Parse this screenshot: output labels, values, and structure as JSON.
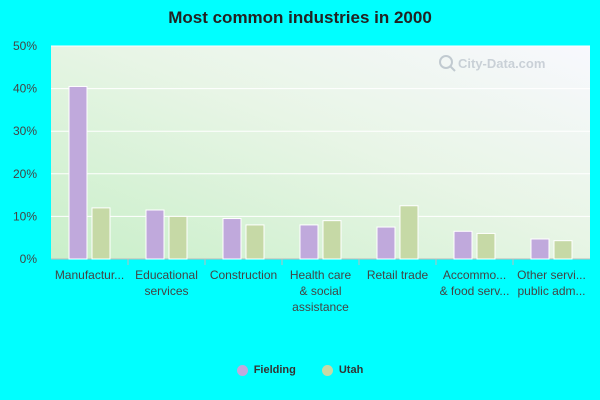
{
  "chart_data": {
    "type": "bar",
    "title": "Most common industries in 2000",
    "categories": [
      [
        "Manufactur..."
      ],
      [
        "Educational",
        "services"
      ],
      [
        "Construction"
      ],
      [
        "Health care",
        "& social",
        "assistance"
      ],
      [
        "Retail trade"
      ],
      [
        "Accommo...",
        "& food serv..."
      ],
      [
        "Other servi...",
        "public adm..."
      ]
    ],
    "series": [
      {
        "name": "Fielding",
        "color": "#C0A9DC",
        "values": [
          40.5,
          11.5,
          9.5,
          8.0,
          7.5,
          6.5,
          4.7
        ]
      },
      {
        "name": "Utah",
        "color": "#C6D9A6",
        "values": [
          12.0,
          10.0,
          8.0,
          9.0,
          12.5,
          6.0,
          4.3
        ]
      }
    ],
    "yticks": [
      "0%",
      "10%",
      "20%",
      "30%",
      "40%",
      "50%"
    ],
    "ylim": [
      0,
      50
    ],
    "legend_position": "bottom",
    "grid": true,
    "watermark": "City-Data.com"
  }
}
